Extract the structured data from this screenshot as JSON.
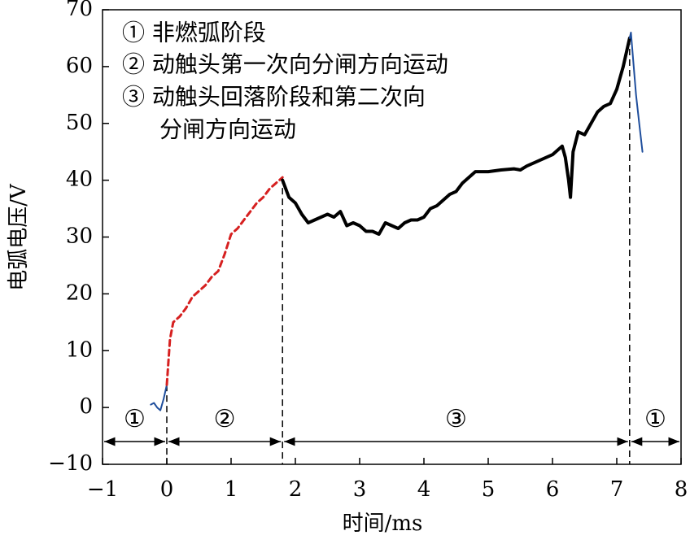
{
  "chart_data": {
    "type": "line",
    "xlabel": "时间/ms",
    "ylabel": "电弧电压/V",
    "xlim": [
      -1,
      8
    ],
    "ylim": [
      -10,
      70
    ],
    "xticks": [
      {
        "value": -1,
        "label": "−1"
      },
      0,
      1,
      2,
      3,
      4,
      5,
      6,
      7,
      8
    ],
    "yticks": [
      {
        "value": -10,
        "label": "−10"
      },
      0,
      10,
      20,
      30,
      40,
      50,
      60,
      70
    ],
    "notes": [
      "① 非燃弧阶段",
      "② 动触头第一次向分闸方向运动",
      "③ 动触头回落阶段和第二次向",
      "分闸方向运动"
    ],
    "phases": [
      {
        "label": "①",
        "range": [
          -1,
          0
        ]
      },
      {
        "label": "②",
        "range": [
          0,
          1.8
        ]
      },
      {
        "label": "③",
        "range": [
          1.8,
          7.2
        ]
      },
      {
        "label": "①",
        "range": [
          7.2,
          8
        ]
      }
    ],
    "phase_arrow_y": -6,
    "series": [
      {
        "color": "#1f4e9c",
        "style": "solid",
        "width": 2,
        "x": [
          -0.25,
          -0.2,
          -0.15,
          -0.1,
          -0.05,
          0
        ],
        "values": [
          0.5,
          0.8,
          0,
          -0.5,
          1.5,
          4
        ]
      },
      {
        "color": "#d62020",
        "style": "dashed",
        "width": 3,
        "x": [
          0,
          0.05,
          0.1,
          0.2,
          0.3,
          0.4,
          0.5,
          0.6,
          0.7,
          0.8,
          0.9,
          1.0,
          1.1,
          1.2,
          1.3,
          1.4,
          1.5,
          1.6,
          1.7,
          1.8
        ],
        "values": [
          4,
          12,
          15,
          16,
          17.5,
          19.5,
          20.5,
          21.5,
          23,
          24,
          27,
          30.5,
          31.5,
          33,
          34.5,
          36,
          37,
          38.5,
          39.5,
          40.5
        ]
      },
      {
        "color": "#000000",
        "style": "solid",
        "width": 4,
        "x": [
          1.8,
          1.9,
          2.0,
          2.1,
          2.2,
          2.3,
          2.4,
          2.5,
          2.6,
          2.7,
          2.8,
          2.9,
          3.0,
          3.1,
          3.2,
          3.3,
          3.4,
          3.5,
          3.6,
          3.7,
          3.8,
          3.9,
          4.0,
          4.1,
          4.2,
          4.3,
          4.4,
          4.5,
          4.6,
          4.7,
          4.8,
          4.9,
          5.0,
          5.2,
          5.4,
          5.5,
          5.6,
          5.8,
          6.0,
          6.1,
          6.15,
          6.2,
          6.25,
          6.28,
          6.32,
          6.4,
          6.5,
          6.6,
          6.7,
          6.8,
          6.9,
          7.0,
          7.1,
          7.2
        ],
        "values": [
          40,
          37,
          36,
          34,
          32.5,
          33,
          33.5,
          34,
          33.5,
          34.5,
          32,
          32.5,
          32,
          31,
          31,
          30.5,
          32.5,
          32,
          31.5,
          32.5,
          33,
          33,
          33.5,
          35,
          35.5,
          36.5,
          37.5,
          38,
          39.5,
          40.5,
          41.5,
          41.5,
          41.5,
          41.8,
          42,
          41.8,
          42.5,
          43.5,
          44.5,
          45.5,
          46,
          44,
          40,
          37,
          45,
          48.5,
          48,
          50,
          52,
          53,
          53.5,
          56,
          60,
          65
        ]
      },
      {
        "color": "#1f4e9c",
        "style": "solid",
        "width": 2,
        "x": [
          7.2,
          7.22,
          7.3,
          7.35,
          7.4
        ],
        "values": [
          65,
          66,
          55,
          50,
          45
        ]
      }
    ]
  }
}
